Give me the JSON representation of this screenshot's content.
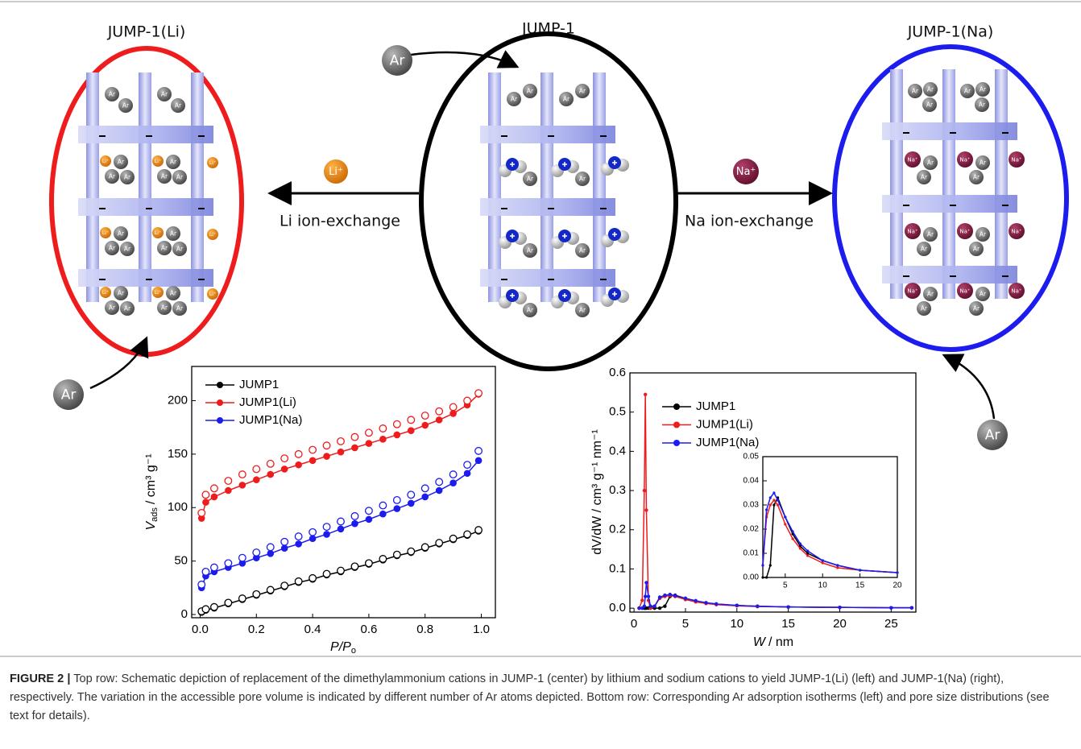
{
  "diagram": {
    "panels": [
      {
        "title": "JUMP-1(Li)"
      },
      {
        "title": "JUMP-1"
      },
      {
        "title": "JUMP-1(Na)"
      }
    ],
    "ar_label": "Ar",
    "exchanges": [
      {
        "ion": "Li⁺",
        "label": "Li ion-exchange"
      },
      {
        "ion": "Na⁺",
        "label": "Na ion-exchange"
      }
    ]
  },
  "chart_data": [
    {
      "type": "line",
      "x_label": {
        "symbol": "P/P",
        "subscript": "o"
      },
      "y_label": {
        "symbol": "V",
        "subscript": "ads",
        "unit": "/ cm³ g⁻¹"
      },
      "xlim": [
        -0.03,
        1.05
      ],
      "ylim": [
        -3,
        232
      ],
      "xticks": [
        {
          "value": 0,
          "label": "0.0"
        },
        0.2,
        0.4,
        0.6,
        0.8,
        {
          "value": 1,
          "label": "1.0"
        }
      ],
      "yticks": [
        0,
        50,
        100,
        150,
        200
      ],
      "x": [
        0.005,
        0.02,
        0.05,
        0.1,
        0.15,
        0.2,
        0.25,
        0.3,
        0.35,
        0.4,
        0.45,
        0.5,
        0.55,
        0.6,
        0.65,
        0.7,
        0.75,
        0.8,
        0.85,
        0.9,
        0.95,
        0.99
      ],
      "series": [
        {
          "name": "JUMP1",
          "color": "#000000",
          "values": [
            2,
            4,
            6,
            10,
            14,
            18,
            22,
            26,
            30,
            33,
            37,
            40,
            44,
            47,
            51,
            55,
            58,
            62,
            66,
            70,
            74,
            78
          ],
          "desorption": [
            3,
            5,
            7,
            11,
            15,
            19,
            23,
            27,
            31,
            34,
            38,
            41,
            45,
            48,
            52,
            56,
            59,
            63,
            67,
            71,
            75,
            79
          ]
        },
        {
          "name": "JUMP1(Li)",
          "color": "#ee1c1c",
          "values": [
            90,
            105,
            110,
            116,
            121,
            126,
            131,
            136,
            140,
            144,
            148,
            152,
            156,
            160,
            164,
            168,
            172,
            177,
            182,
            188,
            196,
            206
          ],
          "desorption": [
            95,
            112,
            118,
            125,
            131,
            136,
            141,
            146,
            150,
            154,
            158,
            162,
            166,
            170,
            174,
            178,
            182,
            186,
            190,
            194,
            200,
            207
          ]
        },
        {
          "name": "JUMP1(Na)",
          "color": "#1c1cee",
          "values": [
            25,
            36,
            40,
            44,
            48,
            53,
            57,
            62,
            66,
            71,
            75,
            80,
            85,
            89,
            94,
            99,
            104,
            110,
            116,
            123,
            132,
            144
          ],
          "desorption": [
            28,
            40,
            44,
            48,
            53,
            58,
            63,
            68,
            73,
            77,
            82,
            87,
            92,
            97,
            102,
            107,
            112,
            118,
            124,
            131,
            140,
            153
          ]
        }
      ]
    },
    {
      "type": "line",
      "x_label": {
        "symbol": "W",
        "unit": "/ nm"
      },
      "y_label": "dV/dW / cm³ g⁻¹ nm⁻¹",
      "xlim": [
        -0.4,
        27.4
      ],
      "ylim": [
        -0.01,
        0.6
      ],
      "xticks": [
        0,
        5,
        10,
        15,
        20,
        25
      ],
      "yticks": [
        {
          "value": 0,
          "label": "0.0"
        },
        0.1,
        0.2,
        0.3,
        0.4,
        0.5,
        0.6
      ],
      "x": [
        0.5,
        0.8,
        1.0,
        1.1,
        1.2,
        1.4,
        1.6,
        2,
        2.5,
        3,
        3.5,
        4,
        5,
        6,
        7,
        8,
        10,
        12,
        15,
        20,
        25,
        27
      ],
      "series": [
        {
          "name": "JUMP1",
          "color": "#000000",
          "values": [
            0,
            0,
            0,
            0,
            0,
            0,
            0,
            0,
            0,
            0.005,
            0.03,
            0.033,
            0.025,
            0.018,
            0.013,
            0.01,
            0.007,
            0.005,
            0.003,
            0.002,
            0.001,
            0.001
          ]
        },
        {
          "name": "JUMP1(Li)",
          "color": "#ee1c1c",
          "values": [
            0,
            0.02,
            0.3,
            0.545,
            0.25,
            0.02,
            0,
            0.005,
            0.025,
            0.03,
            0.032,
            0.03,
            0.022,
            0.016,
            0.012,
            0.009,
            0.006,
            0.004,
            0.003,
            0.002,
            0.001,
            0.001
          ]
        },
        {
          "name": "JUMP1(Na)",
          "color": "#1c1cee",
          "values": [
            0,
            0,
            0.005,
            0.03,
            0.065,
            0.03,
            0.005,
            0.005,
            0.028,
            0.033,
            0.035,
            0.032,
            0.025,
            0.019,
            0.014,
            0.011,
            0.007,
            0.005,
            0.003,
            0.002,
            0.001,
            0.001
          ]
        }
      ],
      "inset": {
        "xlim": [
          2,
          20
        ],
        "ylim": [
          0,
          0.05
        ],
        "xticks": [
          5,
          10,
          15,
          20
        ],
        "yticks": [
          {
            "value": 0,
            "label": "0.00"
          },
          0.01,
          0.02,
          0.03,
          0.04,
          0.05
        ]
      }
    }
  ],
  "caption": {
    "label": "FIGURE 2 |",
    "text": "Top row: Schematic depiction of replacement of the dimethylammonium cations in JUMP-1 (center) by lithium and sodium cations to yield JUMP-1(Li) (left) and JUMP-1(Na) (right), respectively. The variation in the accessible pore volume is indicated by different number of Ar atoms depicted. Bottom row: Corresponding Ar adsorption isotherms (left) and pore size distributions (see text for details)."
  }
}
